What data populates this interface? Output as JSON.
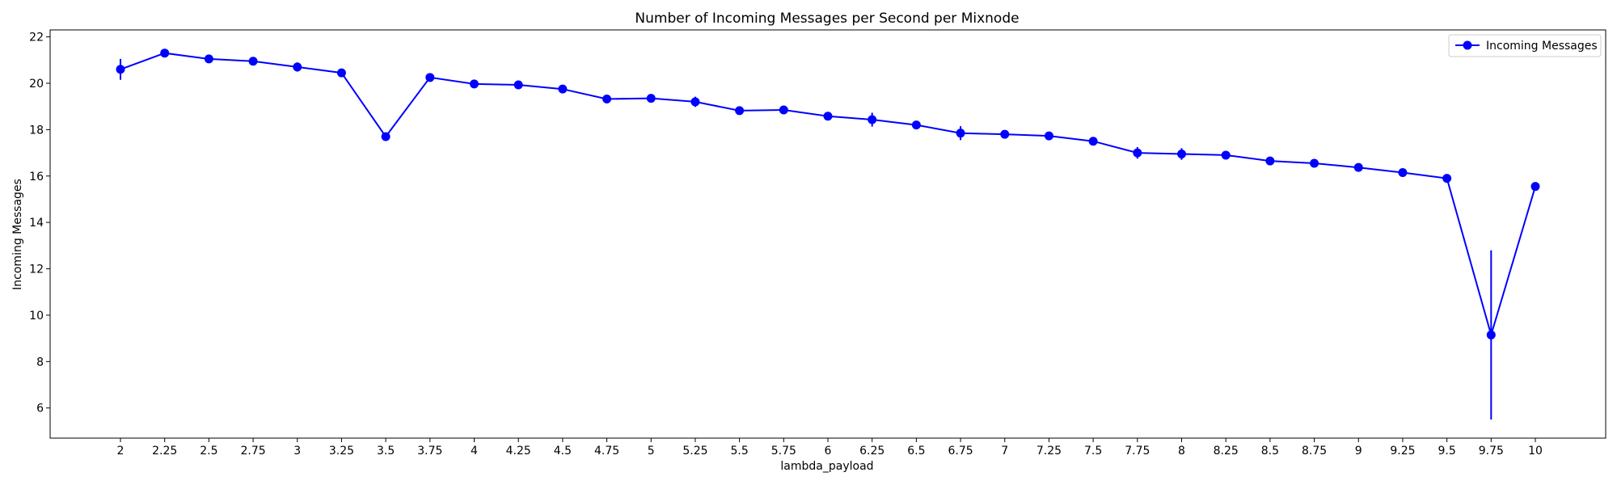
{
  "chart_data": {
    "type": "line",
    "title": "Number of Incoming Messages per Second per Mixnode",
    "xlabel": "lambda_payload",
    "ylabel": "Incoming Messages",
    "x": [
      "2",
      "2.25",
      "2.5",
      "2.75",
      "3",
      "3.25",
      "3.5",
      "3.75",
      "4",
      "4.25",
      "4.5",
      "4.75",
      "5",
      "5.25",
      "5.5",
      "5.75",
      "6",
      "6.25",
      "6.5",
      "6.75",
      "7",
      "7.25",
      "7.5",
      "7.75",
      "8",
      "8.25",
      "8.5",
      "8.75",
      "9",
      "9.25",
      "9.5",
      "9.75",
      "10"
    ],
    "ylim": [
      4.7,
      22.3
    ],
    "yticks": [
      6,
      8,
      10,
      12,
      14,
      16,
      18,
      20,
      22
    ],
    "grid": false,
    "legend_position": "top-right",
    "series": [
      {
        "name": "Incoming Messages",
        "color": "#0000ff",
        "marker": "circle",
        "values": [
          20.6,
          21.3,
          21.05,
          20.95,
          20.7,
          20.45,
          17.7,
          20.25,
          19.97,
          19.93,
          19.75,
          19.32,
          19.35,
          19.2,
          18.82,
          18.85,
          18.58,
          18.43,
          18.2,
          17.85,
          17.8,
          17.73,
          17.5,
          17.0,
          16.95,
          16.9,
          16.65,
          16.55,
          16.37,
          16.15,
          15.9,
          9.15,
          15.55
        ],
        "errors": [
          0.45,
          0.1,
          0.08,
          0.08,
          0.2,
          0.12,
          0.12,
          0.12,
          0.08,
          0.06,
          0.08,
          0.15,
          0.1,
          0.22,
          0.1,
          0.1,
          0.15,
          0.3,
          0.1,
          0.3,
          0.08,
          0.08,
          0.1,
          0.25,
          0.25,
          0.08,
          0.08,
          0.08,
          0.1,
          0.08,
          0.15,
          3.65,
          0.08
        ]
      }
    ]
  }
}
